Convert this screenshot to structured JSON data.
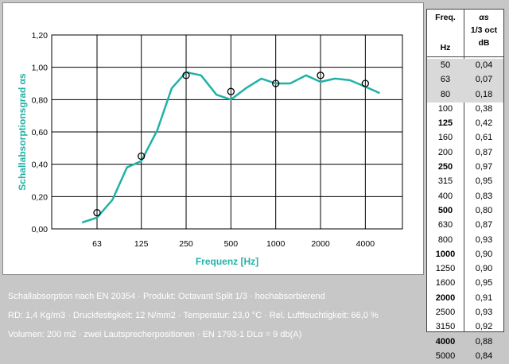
{
  "chart_data": {
    "type": "line",
    "ylabel": "Schallabsorptionsgrad αs",
    "xlabel": "Frequenz [Hz]",
    "x_scale": "log",
    "y_range": [
      0,
      1.2
    ],
    "y_ticks": [
      "0,00",
      "0,20",
      "0,40",
      "0,60",
      "0,80",
      "1,00",
      "1,20"
    ],
    "x_tick_labels": [
      "63",
      "125",
      "250",
      "500",
      "1000",
      "2000",
      "4000"
    ],
    "grid": true,
    "line_color": "#20b2a6",
    "series": [
      {
        "x": [
          50,
          63,
          80,
          100,
          125,
          160,
          200,
          250,
          315,
          400,
          500,
          630,
          800,
          1000,
          1250,
          1600,
          2000,
          2500,
          3150,
          4000,
          5000
        ],
        "values": [
          0.04,
          0.07,
          0.18,
          0.38,
          0.42,
          0.61,
          0.87,
          0.97,
          0.95,
          0.83,
          0.8,
          0.87,
          0.93,
          0.9,
          0.9,
          0.95,
          0.91,
          0.93,
          0.92,
          0.88,
          0.84
        ]
      }
    ],
    "markers": {
      "x": [
        63,
        125,
        250,
        500,
        1000,
        2000,
        4000
      ],
      "values": [
        0.1,
        0.45,
        0.95,
        0.85,
        0.9,
        0.95,
        0.9
      ]
    }
  },
  "table": {
    "header_freq_1": "Freq.",
    "header_freq_2": "Hz",
    "header_alpha_1": "αs",
    "header_alpha_2": "1/3 oct",
    "header_alpha_3": "dB",
    "rows": [
      {
        "f": "50",
        "v": "0,04",
        "shaded": true,
        "bold": false
      },
      {
        "f": "63",
        "v": "0,07",
        "shaded": true,
        "bold": false
      },
      {
        "f": "80",
        "v": "0,18",
        "shaded": true,
        "bold": false
      },
      {
        "f": "100",
        "v": "0,38",
        "shaded": false,
        "bold": false
      },
      {
        "f": "125",
        "v": "0,42",
        "shaded": false,
        "bold": true
      },
      {
        "f": "160",
        "v": "0,61",
        "shaded": false,
        "bold": false
      },
      {
        "f": "200",
        "v": "0,87",
        "shaded": false,
        "bold": false
      },
      {
        "f": "250",
        "v": "0,97",
        "shaded": false,
        "bold": true
      },
      {
        "f": "315",
        "v": "0,95",
        "shaded": false,
        "bold": false
      },
      {
        "f": "400",
        "v": "0,83",
        "shaded": false,
        "bold": false
      },
      {
        "f": "500",
        "v": "0,80",
        "shaded": false,
        "bold": true
      },
      {
        "f": "630",
        "v": "0,87",
        "shaded": false,
        "bold": false
      },
      {
        "f": "800",
        "v": "0,93",
        "shaded": false,
        "bold": false
      },
      {
        "f": "1000",
        "v": "0,90",
        "shaded": false,
        "bold": true
      },
      {
        "f": "1250",
        "v": "0,90",
        "shaded": false,
        "bold": false
      },
      {
        "f": "1600",
        "v": "0,95",
        "shaded": false,
        "bold": false
      },
      {
        "f": "2000",
        "v": "0,91",
        "shaded": false,
        "bold": true
      },
      {
        "f": "2500",
        "v": "0,93",
        "shaded": false,
        "bold": false
      },
      {
        "f": "3150",
        "v": "0,92",
        "shaded": false,
        "bold": false
      },
      {
        "f": "4000",
        "v": "0,88",
        "shaded": false,
        "bold": true
      },
      {
        "f": "5000",
        "v": "0,84",
        "shaded": false,
        "bold": false
      }
    ]
  },
  "notes": {
    "line1": "Schallabsorption nach EN 20354   ·   Produkt: Octavant Split 1/3   ·   hochabsorbierend",
    "line2": "RD: 1,4 Kg/m3  ·  Druckfestigkeit: 12 N/mm2  ·  Temperatur: 23,0 °C  ·  Rel. Luftfeuchtigkeit: 66,0 %",
    "line3": "Volumen: 200 m2   ·  zwei Lautsprecherpositionen   ·  EN 1793-1  DLα = 9 db(A)"
  }
}
